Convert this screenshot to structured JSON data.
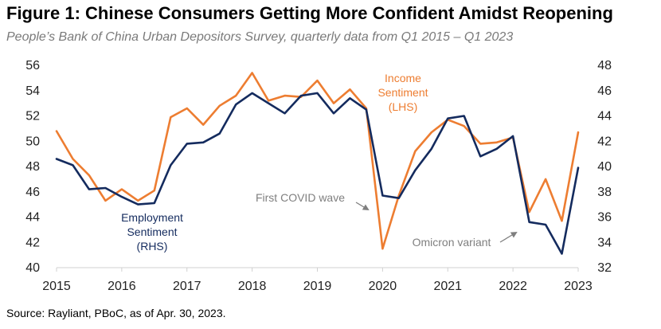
{
  "title": "Figure 1: Chinese Consumers Getting More Confident Amidst Reopening",
  "subtitle": "People’s Bank of China Urban Depositors Survey, quarterly data from Q1 2015 – Q1 2023",
  "source": "Source: Rayliant, PBoC, as of Apr. 30, 2023.",
  "chart_data": {
    "type": "line",
    "x_labels": [
      "2015",
      "2016",
      "2017",
      "2018",
      "2019",
      "2020",
      "2021",
      "2022",
      "2023"
    ],
    "x": [
      "2015Q1",
      "2015Q2",
      "2015Q3",
      "2015Q4",
      "2016Q1",
      "2016Q2",
      "2016Q3",
      "2016Q4",
      "2017Q1",
      "2017Q2",
      "2017Q3",
      "2017Q4",
      "2018Q1",
      "2018Q2",
      "2018Q3",
      "2018Q4",
      "2019Q1",
      "2019Q2",
      "2019Q3",
      "2019Q4",
      "2020Q1",
      "2020Q2",
      "2020Q3",
      "2020Q4",
      "2021Q1",
      "2021Q2",
      "2021Q3",
      "2021Q4",
      "2022Q1",
      "2022Q2",
      "2022Q3",
      "2022Q4",
      "2023Q1"
    ],
    "left_axis": {
      "min": 40,
      "max": 56,
      "ticks": [
        "40",
        "42",
        "44",
        "46",
        "48",
        "50",
        "52",
        "54",
        "56"
      ]
    },
    "right_axis": {
      "min": 32,
      "max": 48,
      "ticks": [
        "32",
        "34",
        "36",
        "38",
        "40",
        "42",
        "44",
        "46",
        "48"
      ]
    },
    "series": [
      {
        "name": "Income Sentiment (LHS)",
        "label_lines": [
          "Income",
          "Sentiment",
          "(LHS)"
        ],
        "axis": "left",
        "color": "#ED7D31",
        "values": [
          50.8,
          48.6,
          47.3,
          45.3,
          46.2,
          45.3,
          46.1,
          51.9,
          52.6,
          51.3,
          52.8,
          53.6,
          55.4,
          53.2,
          53.6,
          53.5,
          54.8,
          53.0,
          54.1,
          52.6,
          41.5,
          45.7,
          49.2,
          50.7,
          51.7,
          51.2,
          49.8,
          49.9,
          50.3,
          44.4,
          47.0,
          43.7,
          50.7
        ]
      },
      {
        "name": "Employment Sentiment (RHS)",
        "label_lines": [
          "Employment",
          "Sentiment",
          "(RHS)"
        ],
        "axis": "right",
        "color": "#142B5E",
        "values": [
          40.6,
          40.1,
          38.2,
          38.3,
          37.6,
          37.0,
          37.1,
          40.1,
          41.8,
          41.9,
          42.6,
          44.9,
          45.8,
          45.0,
          44.2,
          45.6,
          45.8,
          44.2,
          45.4,
          44.5,
          37.7,
          37.5,
          39.7,
          41.4,
          43.8,
          44.0,
          40.8,
          41.4,
          42.4,
          35.6,
          35.4,
          33.1,
          39.9
        ]
      }
    ],
    "annotations": [
      {
        "text": "First COVID wave",
        "target_index": 20,
        "target_series": 0
      },
      {
        "text": "Omicron  variant",
        "target_index": 30,
        "target_series": 1
      }
    ],
    "grid": false
  }
}
